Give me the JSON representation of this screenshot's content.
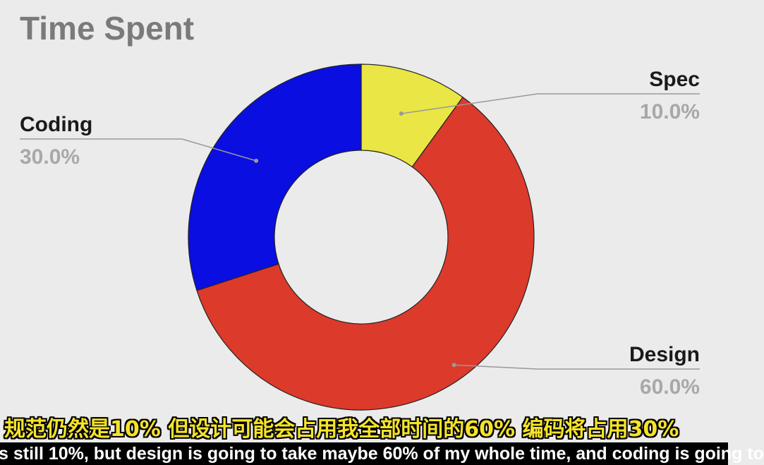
{
  "chart_data": {
    "type": "pie",
    "title": "Time Spent",
    "donut": true,
    "slices": [
      {
        "label": "Spec",
        "value": 10.0,
        "display": "10.0%",
        "color": "#e9e645"
      },
      {
        "label": "Design",
        "value": 60.0,
        "display": "60.0%",
        "color": "#dc3a2b"
      },
      {
        "label": "Coding",
        "value": 30.0,
        "display": "30.0%",
        "color": "#0a0ee0"
      }
    ],
    "legend": "none",
    "start_angle": "top, clockwise"
  },
  "subtitles": {
    "chinese": "规范仍然是10%  但设计可能会占用我全部时间的60%  编码将占用30%",
    "english": "s still 10%, but design is going to take maybe 60% of my whole time, and coding is going to"
  },
  "colors": {
    "background": "#ebebeb",
    "title": "#7a7a7a",
    "category_label": "#1a1a1a",
    "percent_label": "#a8a8a8",
    "leader_line": "#999999",
    "subtitle_cn": "#f5e32a"
  }
}
